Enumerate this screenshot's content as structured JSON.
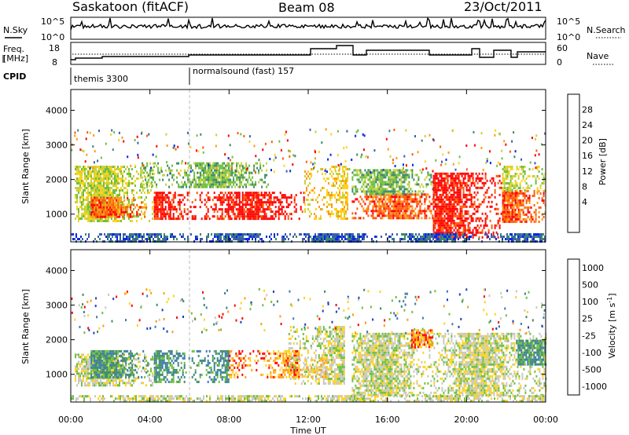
{
  "header": {
    "station": "Saskatoon (fitACF)",
    "beam": "Beam 08",
    "date": "23/Oct/2011"
  },
  "panels": {
    "nsky": {
      "label": "N.Sky",
      "ticks_left": [
        "10^5",
        "10^0"
      ],
      "ticks_right": [
        "10^5",
        "10^0"
      ],
      "right_label": "N.Search"
    },
    "freq": {
      "label_line1": "Freq.",
      "label_line2": "[MHz]",
      "ticks_left": [
        "18",
        "8"
      ],
      "ticks_right": [
        "60",
        "0"
      ],
      "right_label": "Nave"
    },
    "cpid": {
      "label": "CPID",
      "modes": [
        {
          "name": "themis 3300"
        },
        {
          "name": "normalsound (fast) 157"
        }
      ]
    }
  },
  "chart_data": [
    {
      "type": "heatmap",
      "name": "power",
      "ylabel": "Slant Range [km]",
      "yticks": [
        1000,
        2000,
        3000,
        4000
      ],
      "ylim": [
        200,
        4600
      ],
      "xlim": [
        0,
        24
      ],
      "colorbar": {
        "label": "Power [dB]",
        "ticks": [
          4,
          8,
          12,
          16,
          20,
          24,
          28
        ],
        "colors": [
          "#0a28e6",
          "#3a5fb0",
          "#3d8a6a",
          "#6fbf3f",
          "#c8d23a",
          "#ffd21e",
          "#ff9a14",
          "#ff5a0a",
          "#ff0000"
        ]
      },
      "bands": [
        {
          "t0": 0.2,
          "t1": 4.2,
          "r0": 800,
          "r1": 2400,
          "level": 4
        },
        {
          "t0": 1.0,
          "t1": 3.8,
          "r0": 900,
          "r1": 1500,
          "level": 7
        },
        {
          "t0": 4.2,
          "t1": 11.8,
          "r0": 850,
          "r1": 1650,
          "level": 8
        },
        {
          "t0": 3.5,
          "t1": 10.0,
          "r0": 1800,
          "r1": 2500,
          "level": 3
        },
        {
          "t0": 11.8,
          "t1": 14.0,
          "r0": 900,
          "r1": 2400,
          "level": 5
        },
        {
          "t0": 14.2,
          "t1": 18.3,
          "r0": 900,
          "r1": 1600,
          "level": 7
        },
        {
          "t0": 14.2,
          "t1": 18.3,
          "r0": 1600,
          "r1": 2300,
          "level": 3
        },
        {
          "t0": 18.3,
          "t1": 21.8,
          "r0": 350,
          "r1": 2200,
          "level": 8
        },
        {
          "t0": 21.8,
          "t1": 24.0,
          "r0": 800,
          "r1": 1700,
          "level": 7
        },
        {
          "t0": 21.8,
          "t1": 24.0,
          "r0": 1700,
          "r1": 2400,
          "level": 4
        },
        {
          "t0": 0.0,
          "t1": 24.0,
          "r0": 200,
          "r1": 450,
          "level": 1
        }
      ]
    },
    {
      "type": "heatmap",
      "name": "velocity",
      "ylabel": "Slant Range [km]",
      "xlabel": "Time UT",
      "xticks": [
        "00:00",
        "04:00",
        "08:00",
        "12:00",
        "16:00",
        "20:00",
        "00:00"
      ],
      "yticks": [
        1000,
        2000,
        3000,
        4000
      ],
      "ylim": [
        200,
        4600
      ],
      "xlim": [
        0,
        24
      ],
      "colorbar": {
        "label": "Velocity [m s",
        "label_sup": "-1",
        "label_end": "]",
        "ticks": [
          "1000",
          "500",
          "100",
          "25",
          "-25",
          "-100",
          "-500",
          "-1000"
        ],
        "colors": [
          "#2040c0",
          "#3a7ab0",
          "#3d8a6a",
          "#6fbf3f",
          "#c8c8c0",
          "#ffd21e",
          "#ff9a14",
          "#ff0000"
        ]
      },
      "bands": [
        {
          "t0": 0.2,
          "t1": 4.2,
          "r0": 700,
          "r1": 1600,
          "level": 4
        },
        {
          "t0": 1.0,
          "t1": 4.0,
          "r0": 900,
          "r1": 1700,
          "level": 2
        },
        {
          "t0": 4.2,
          "t1": 8.0,
          "r0": 800,
          "r1": 1700,
          "level": 2
        },
        {
          "t0": 8.0,
          "t1": 11.5,
          "r0": 900,
          "r1": 1700,
          "level": 6
        },
        {
          "t0": 11.0,
          "t1": 13.8,
          "r0": 700,
          "r1": 2400,
          "level": 4
        },
        {
          "t0": 11.5,
          "t1": 13.0,
          "r0": 900,
          "r1": 1500,
          "level": 5
        },
        {
          "t0": 14.2,
          "t1": 24.0,
          "r0": 400,
          "r1": 2200,
          "level": 4
        },
        {
          "t0": 22.5,
          "t1": 24.0,
          "r0": 1300,
          "r1": 2000,
          "level": 2
        },
        {
          "t0": 17.2,
          "t1": 18.3,
          "r0": 1800,
          "r1": 2300,
          "level": 6
        },
        {
          "t0": 0.0,
          "t1": 24.0,
          "r0": 200,
          "r1": 400,
          "level": 4
        }
      ]
    }
  ]
}
